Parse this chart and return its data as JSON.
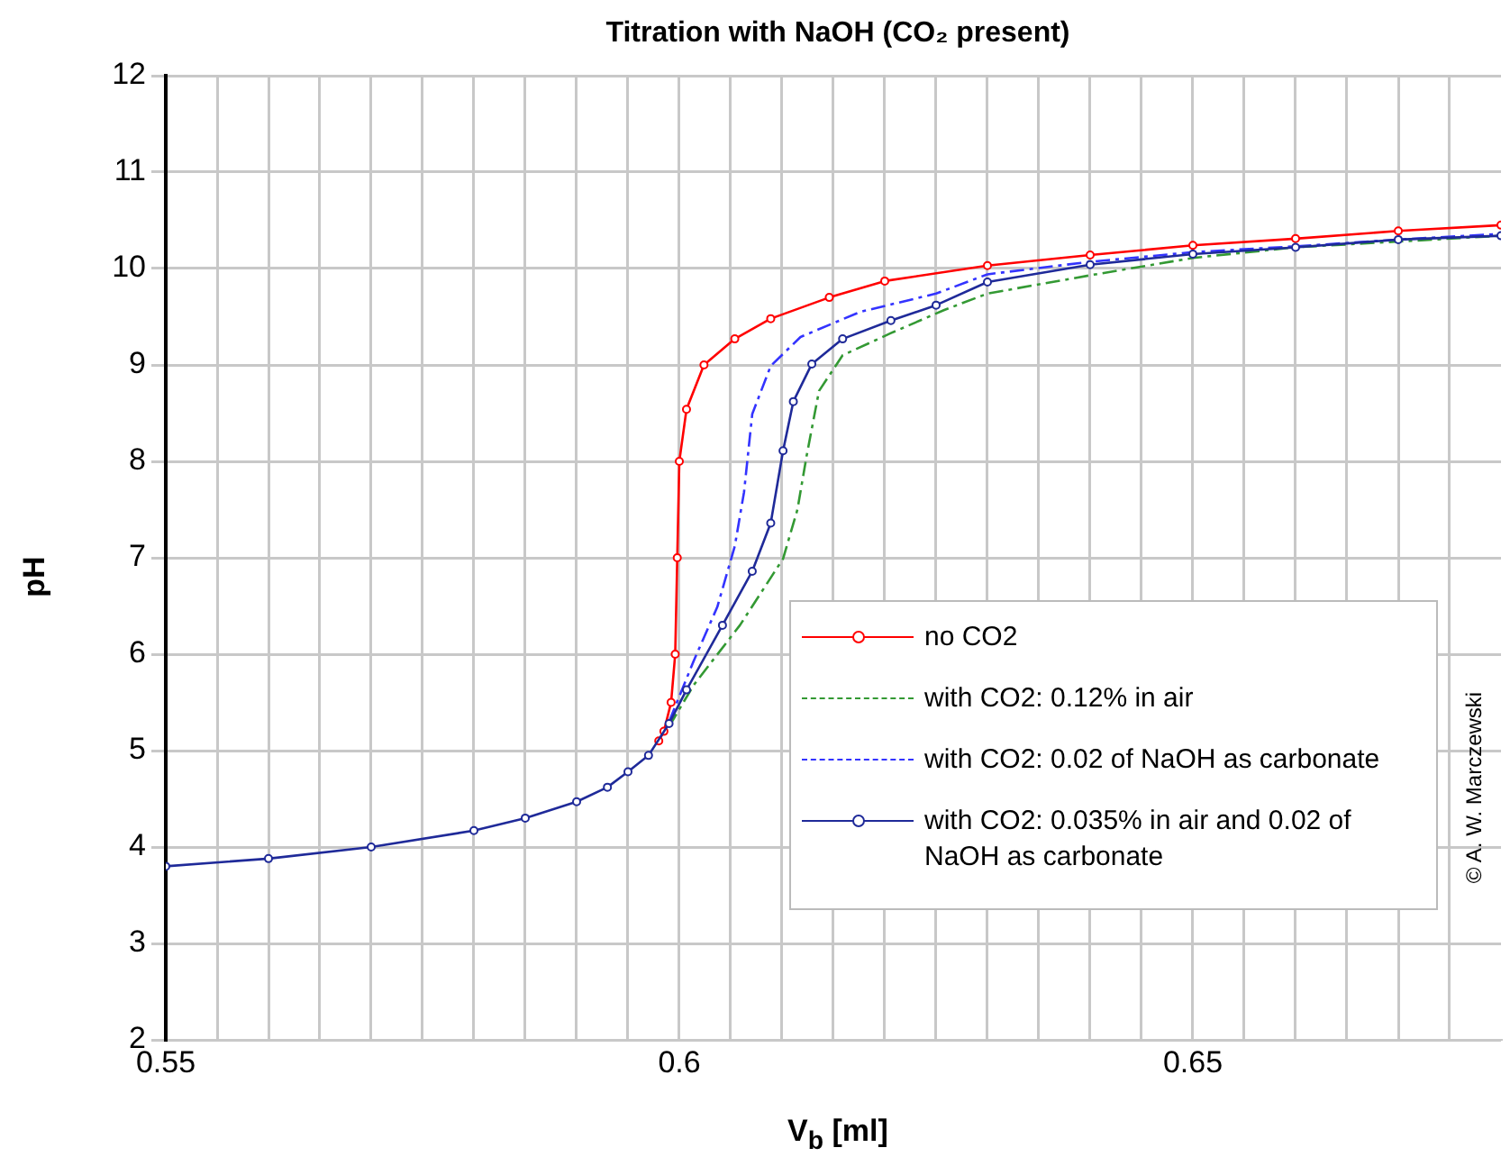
{
  "chart_data": {
    "type": "line",
    "title": "Titration with NaOH (CO₂ present)",
    "xlabel": "V$_{b}$ [ml]",
    "ylabel": "pH",
    "xlim": [
      0.55,
      0.68
    ],
    "xticks": [
      0.55,
      {
        "value": 0.555,
        "label": null
      },
      {
        "value": 0.56,
        "label": null
      },
      {
        "value": 0.565,
        "label": null
      },
      {
        "value": 0.57,
        "label": null
      },
      {
        "value": 0.575,
        "label": null
      },
      {
        "value": 0.58,
        "label": null
      },
      {
        "value": 0.585,
        "label": null
      },
      {
        "value": 0.59,
        "label": null
      },
      {
        "value": 0.595,
        "label": null
      },
      {
        "value": 0.6,
        "label": "0.6"
      },
      {
        "value": 0.605,
        "label": null
      },
      {
        "value": 0.61,
        "label": null
      },
      {
        "value": 0.615,
        "label": null
      },
      {
        "value": 0.62,
        "label": null
      },
      {
        "value": 0.625,
        "label": null
      },
      {
        "value": 0.63,
        "label": null
      },
      {
        "value": 0.635,
        "label": null
      },
      {
        "value": 0.64,
        "label": null
      },
      {
        "value": 0.645,
        "label": null
      },
      0.65,
      {
        "value": 0.655,
        "label": null
      },
      {
        "value": 0.66,
        "label": null
      },
      {
        "value": 0.665,
        "label": null
      },
      {
        "value": 0.67,
        "label": null
      },
      {
        "value": 0.675,
        "label": null
      }
    ],
    "ylim": [
      2,
      12
    ],
    "yticks": [
      2,
      3,
      4,
      5,
      6,
      7,
      8,
      9,
      10,
      11,
      12
    ],
    "grid": true,
    "legend": "bottom right",
    "annotations": [
      "© A. W. Marczewski"
    ],
    "series": [
      {
        "name": "no CO2",
        "color": "#ff0000",
        "marker": "circle",
        "line_style": "solid",
        "x": [
          0.598,
          0.5985,
          0.5992,
          0.5996,
          0.5998,
          0.6,
          0.6007,
          0.6024,
          0.6054,
          0.6089,
          0.6146,
          0.62,
          0.63,
          0.64,
          0.65,
          0.66,
          0.67,
          0.68
        ],
        "values": [
          5.1,
          5.2,
          5.5,
          6.0,
          7.0,
          8.0,
          8.54,
          9.0,
          9.27,
          9.48,
          9.7,
          9.87,
          10.03,
          10.14,
          10.24,
          10.31,
          10.39,
          10.45
        ]
      },
      {
        "name": "with CO2: 0.12% in air",
        "color": "#339933",
        "marker": "none",
        "line_style": "dashed",
        "x": [
          0.599,
          0.6014,
          0.6059,
          0.6101,
          0.6115,
          0.6124,
          0.6136,
          0.6159,
          0.6206,
          0.6258,
          0.63,
          0.64,
          0.65,
          0.66,
          0.67,
          0.68
        ],
        "values": [
          5.25,
          5.68,
          6.3,
          6.99,
          7.5,
          8.06,
          8.73,
          9.1,
          9.33,
          9.57,
          9.74,
          9.93,
          10.11,
          10.22,
          10.28,
          10.34
        ]
      },
      {
        "name": "with CO2: 0.02 of NaOH as carbonate",
        "color": "#3333ff",
        "marker": "none",
        "line_style": "dashed",
        "x": [
          0.599,
          0.6014,
          0.6037,
          0.6054,
          0.6063,
          0.6071,
          0.6089,
          0.6118,
          0.6176,
          0.625,
          0.63,
          0.64,
          0.65,
          0.66,
          0.67,
          0.68
        ],
        "values": [
          5.3,
          5.93,
          6.49,
          7.12,
          7.68,
          8.49,
          8.99,
          9.29,
          9.55,
          9.74,
          9.94,
          10.07,
          10.17,
          10.23,
          10.3,
          10.36
        ]
      },
      {
        "name": "with CO2: 0.035% in air and 0.02 of NaOH as carbonate",
        "color": "#1f2a99",
        "marker": "circle",
        "line_style": "solid",
        "x": [
          0.55,
          0.56,
          0.57,
          0.58,
          0.585,
          0.59,
          0.593,
          0.595,
          0.597,
          0.599,
          0.6007,
          0.6042,
          0.6071,
          0.6089,
          0.6101,
          0.6111,
          0.6129,
          0.6159,
          0.6206,
          0.625,
          0.63,
          0.64,
          0.65,
          0.66,
          0.67,
          0.68
        ],
        "values": [
          3.8,
          3.88,
          4.0,
          4.17,
          4.3,
          4.47,
          4.62,
          4.78,
          4.95,
          5.28,
          5.63,
          6.3,
          6.86,
          7.36,
          8.11,
          8.62,
          9.01,
          9.27,
          9.46,
          9.62,
          9.86,
          10.04,
          10.15,
          10.22,
          10.3,
          10.34
        ]
      }
    ]
  }
}
